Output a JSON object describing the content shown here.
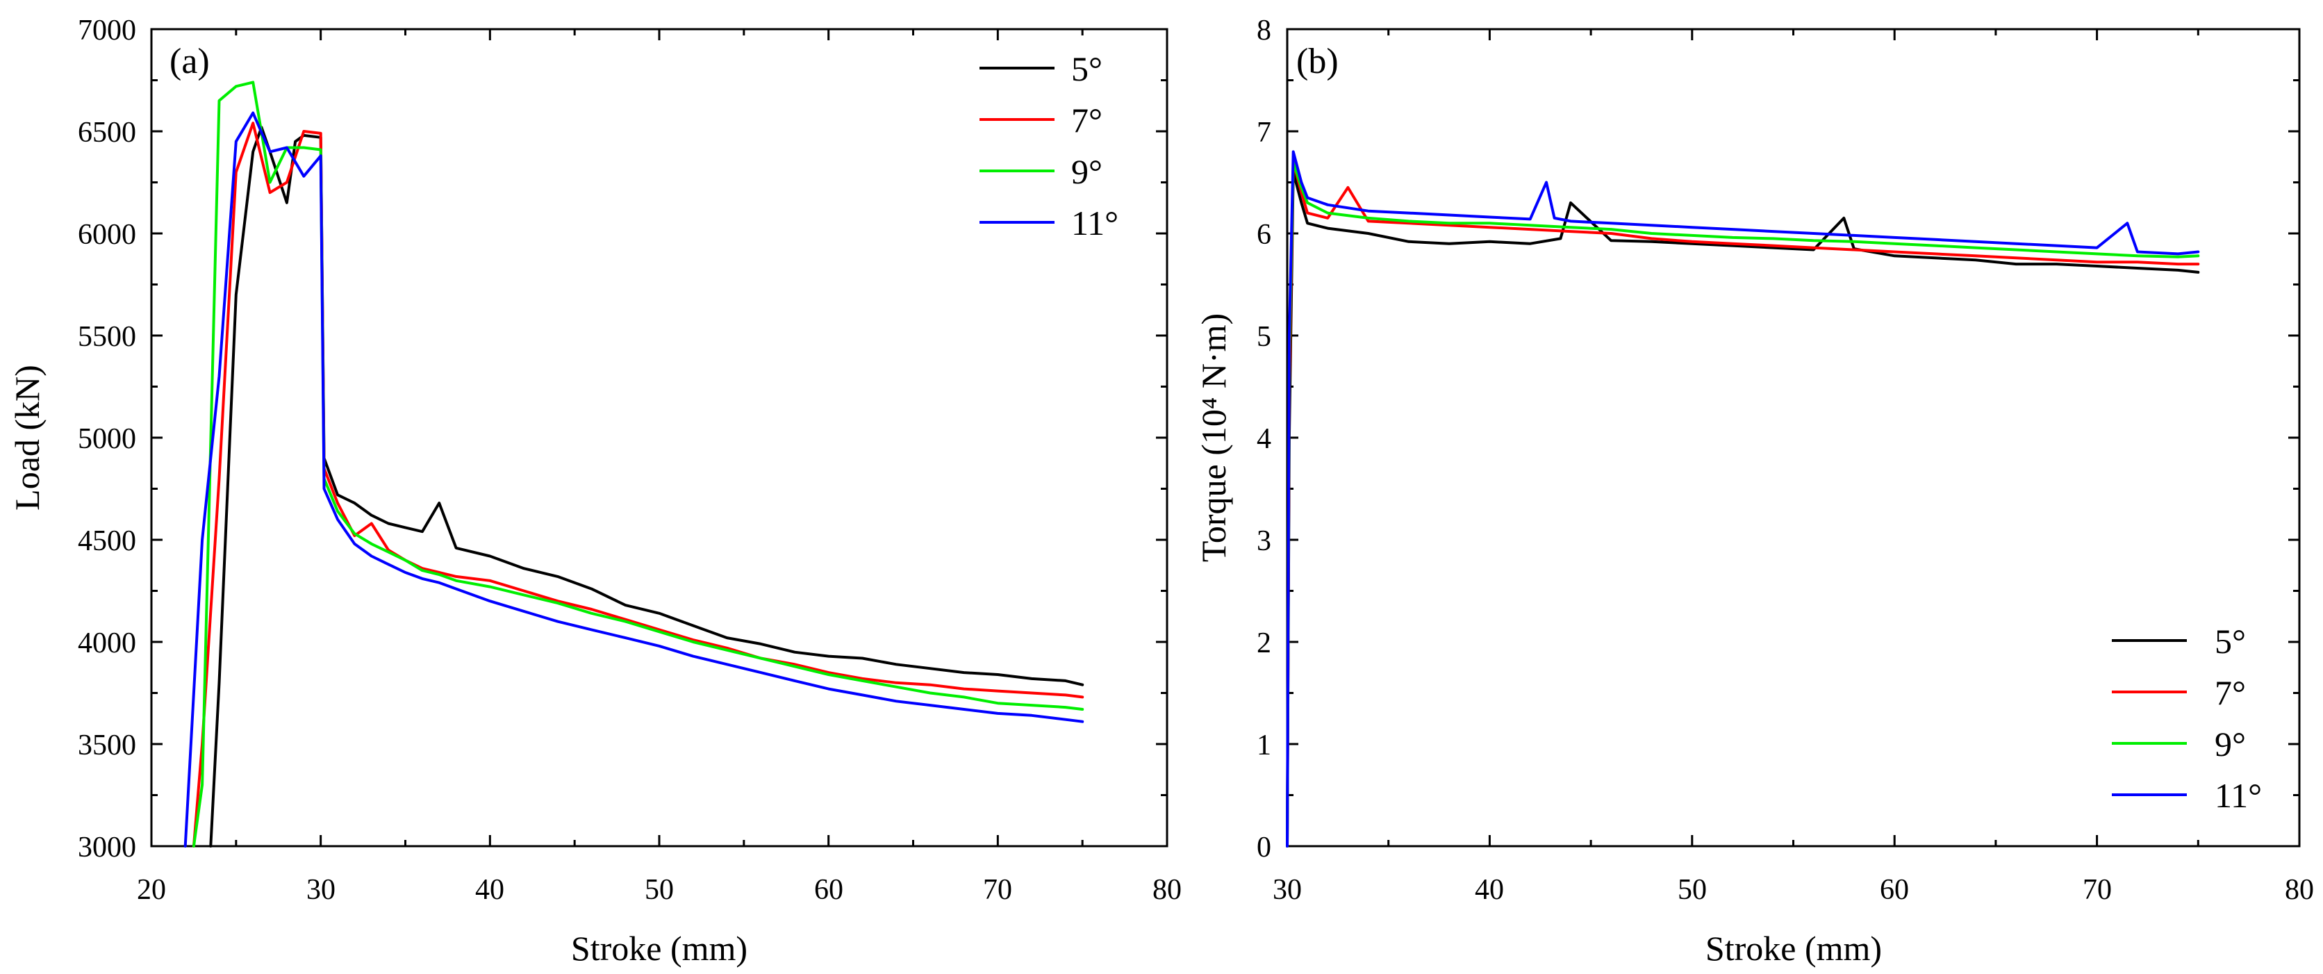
{
  "chart_data": [
    {
      "type": "line",
      "panel_label": "(a)",
      "xlabel": "Stroke (mm)",
      "ylabel": "Load (kN)",
      "xlim": [
        20,
        80
      ],
      "ylim": [
        3000,
        7000
      ],
      "xticks": [
        "20",
        "30",
        "40",
        "50",
        "60",
        "70",
        "80"
      ],
      "yticks": [
        "3000",
        "3500",
        "4000",
        "4500",
        "5000",
        "5500",
        "6000",
        "6500",
        "7000"
      ],
      "legend_position": "top-right",
      "series": [
        {
          "name": "5°",
          "color": "#000000",
          "x": [
            23.5,
            24,
            25,
            26,
            26.5,
            27,
            28,
            28.5,
            29,
            30,
            30.2,
            31,
            32,
            33,
            34,
            35,
            36,
            37,
            38,
            40,
            42,
            44,
            46,
            48,
            50,
            52,
            54,
            56,
            58,
            60,
            62,
            64,
            66,
            68,
            70,
            72,
            74,
            75
          ],
          "y": [
            3000,
            3800,
            5700,
            6400,
            6520,
            6400,
            6150,
            6450,
            6480,
            6470,
            4900,
            4720,
            4680,
            4620,
            4580,
            4560,
            4540,
            4680,
            4460,
            4420,
            4360,
            4320,
            4260,
            4180,
            4140,
            4080,
            4020,
            3990,
            3950,
            3930,
            3920,
            3890,
            3870,
            3850,
            3840,
            3820,
            3810,
            3790
          ]
        },
        {
          "name": "7°",
          "color": "#ff0000",
          "x": [
            22.5,
            23,
            24,
            25,
            26,
            27,
            28,
            29,
            30,
            30.2,
            31,
            32,
            33,
            34,
            35,
            36,
            37,
            38,
            40,
            42,
            44,
            46,
            48,
            50,
            52,
            54,
            56,
            58,
            60,
            62,
            64,
            66,
            68,
            70,
            72,
            74,
            75
          ],
          "y": [
            3000,
            3500,
            4800,
            6300,
            6540,
            6200,
            6250,
            6500,
            6490,
            4850,
            4680,
            4520,
            4580,
            4450,
            4400,
            4360,
            4340,
            4320,
            4300,
            4250,
            4200,
            4160,
            4110,
            4060,
            4010,
            3970,
            3920,
            3890,
            3850,
            3820,
            3800,
            3790,
            3770,
            3760,
            3750,
            3740,
            3730
          ]
        },
        {
          "name": "9°",
          "color": "#00ee00",
          "x": [
            22.5,
            23,
            24,
            25,
            26,
            27,
            28,
            29,
            30,
            30.2,
            31,
            32,
            33,
            34,
            35,
            36,
            37,
            38,
            40,
            42,
            44,
            46,
            48,
            50,
            52,
            54,
            56,
            58,
            60,
            62,
            64,
            66,
            68,
            70,
            72,
            74,
            75
          ],
          "y": [
            3000,
            3300,
            6650,
            6720,
            6740,
            6250,
            6420,
            6420,
            6410,
            4800,
            4640,
            4530,
            4480,
            4440,
            4400,
            4350,
            4330,
            4300,
            4270,
            4230,
            4190,
            4140,
            4100,
            4050,
            4000,
            3960,
            3920,
            3880,
            3840,
            3810,
            3780,
            3750,
            3730,
            3700,
            3690,
            3680,
            3670
          ]
        },
        {
          "name": "11°",
          "color": "#0000ff",
          "x": [
            22,
            23,
            24,
            25,
            26,
            27,
            28,
            29,
            30,
            30.2,
            31,
            32,
            33,
            34,
            35,
            36,
            37,
            38,
            40,
            42,
            44,
            46,
            48,
            50,
            52,
            54,
            56,
            58,
            60,
            62,
            64,
            66,
            68,
            70,
            72,
            74,
            75
          ],
          "y": [
            3000,
            4500,
            5300,
            6450,
            6590,
            6400,
            6420,
            6280,
            6380,
            4750,
            4600,
            4480,
            4420,
            4380,
            4340,
            4310,
            4290,
            4260,
            4200,
            4150,
            4100,
            4060,
            4020,
            3980,
            3930,
            3890,
            3850,
            3810,
            3770,
            3740,
            3710,
            3690,
            3670,
            3650,
            3640,
            3620,
            3610
          ]
        }
      ]
    },
    {
      "type": "line",
      "panel_label": "(b)",
      "xlabel": "Stroke (mm)",
      "ylabel": "Torque (10⁴ N·m)",
      "xlim": [
        30,
        80
      ],
      "ylim": [
        0,
        8
      ],
      "xticks": [
        "30",
        "40",
        "50",
        "60",
        "70",
        "80"
      ],
      "yticks": [
        "0",
        "1",
        "2",
        "3",
        "4",
        "5",
        "6",
        "7",
        "8"
      ],
      "legend_position": "bottom-right",
      "series": [
        {
          "name": "5°",
          "color": "#000000",
          "x": [
            30,
            30.1,
            30.3,
            30.7,
            31,
            32,
            34,
            36,
            38,
            40,
            42,
            43.5,
            44,
            46,
            48,
            50,
            52,
            54,
            56,
            57.5,
            58,
            60,
            62,
            64,
            66,
            68,
            70,
            72,
            74,
            75
          ],
          "y": [
            0,
            4,
            6.6,
            6.3,
            6.1,
            6.05,
            6.0,
            5.92,
            5.9,
            5.92,
            5.9,
            5.95,
            6.3,
            5.93,
            5.92,
            5.9,
            5.88,
            5.86,
            5.84,
            6.15,
            5.85,
            5.78,
            5.76,
            5.74,
            5.7,
            5.7,
            5.68,
            5.66,
            5.64,
            5.62
          ]
        },
        {
          "name": "7°",
          "color": "#ff0000",
          "x": [
            30,
            30.1,
            30.3,
            30.7,
            31,
            32,
            33,
            34,
            36,
            38,
            40,
            42,
            44,
            46,
            48,
            50,
            52,
            54,
            56,
            58,
            60,
            62,
            64,
            66,
            68,
            70,
            72,
            74,
            75
          ],
          "y": [
            0,
            4.5,
            6.7,
            6.4,
            6.2,
            6.15,
            6.45,
            6.12,
            6.1,
            6.08,
            6.06,
            6.04,
            6.02,
            6.0,
            5.95,
            5.92,
            5.9,
            5.88,
            5.86,
            5.84,
            5.82,
            5.8,
            5.78,
            5.76,
            5.74,
            5.72,
            5.72,
            5.7,
            5.7
          ]
        },
        {
          "name": "9°",
          "color": "#00ee00",
          "x": [
            30,
            30.1,
            30.3,
            30.7,
            31,
            32,
            34,
            36,
            38,
            40,
            42,
            44,
            46,
            48,
            50,
            52,
            54,
            56,
            58,
            60,
            62,
            64,
            66,
            68,
            70,
            72,
            74,
            75
          ],
          "y": [
            0,
            4.8,
            6.7,
            6.45,
            6.3,
            6.2,
            6.15,
            6.12,
            6.1,
            6.1,
            6.08,
            6.06,
            6.04,
            6.0,
            5.98,
            5.96,
            5.95,
            5.93,
            5.92,
            5.9,
            5.88,
            5.86,
            5.84,
            5.82,
            5.8,
            5.78,
            5.77,
            5.78
          ]
        },
        {
          "name": "11°",
          "color": "#0000ff",
          "x": [
            30,
            30.1,
            30.3,
            30.7,
            31,
            32,
            34,
            36,
            38,
            40,
            42,
            42.8,
            43.2,
            44,
            46,
            48,
            50,
            52,
            54,
            56,
            58,
            60,
            62,
            64,
            66,
            68,
            70,
            71.5,
            72,
            74,
            75
          ],
          "y": [
            0,
            5,
            6.8,
            6.5,
            6.35,
            6.28,
            6.22,
            6.2,
            6.18,
            6.16,
            6.14,
            6.5,
            6.15,
            6.12,
            6.1,
            6.08,
            6.06,
            6.04,
            6.02,
            6.0,
            5.98,
            5.96,
            5.94,
            5.92,
            5.9,
            5.88,
            5.86,
            6.1,
            5.82,
            5.8,
            5.82
          ]
        }
      ]
    }
  ]
}
